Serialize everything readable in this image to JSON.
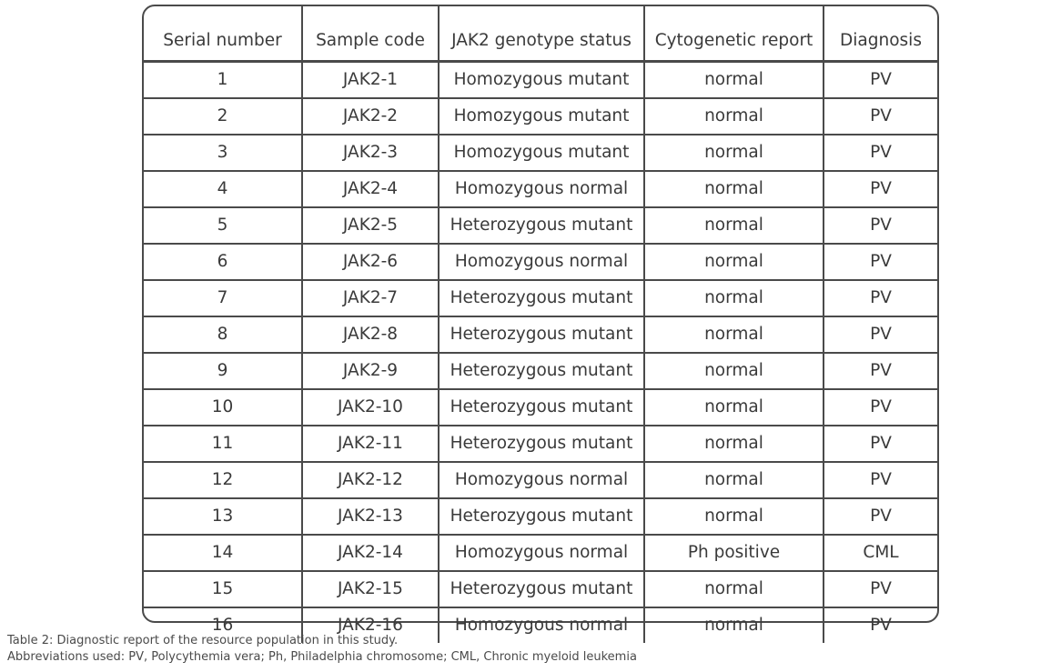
{
  "table": {
    "headers": [
      "Serial number",
      "Sample code",
      "JAK2 genotype status",
      "Cytogenetic report",
      "Diagnosis"
    ],
    "rows": [
      [
        "1",
        "JAK2-1",
        "Homozygous mutant",
        "normal",
        "PV"
      ],
      [
        "2",
        "JAK2-2",
        "Homozygous mutant",
        "normal",
        "PV"
      ],
      [
        "3",
        "JAK2-3",
        "Homozygous mutant",
        "normal",
        "PV"
      ],
      [
        "4",
        "JAK2-4",
        "Homozygous normal",
        "normal",
        "PV"
      ],
      [
        "5",
        "JAK2-5",
        "Heterozygous mutant",
        "normal",
        "PV"
      ],
      [
        "6",
        "JAK2-6",
        "Homozygous normal",
        "normal",
        "PV"
      ],
      [
        "7",
        "JAK2-7",
        "Heterozygous mutant",
        "normal",
        "PV"
      ],
      [
        "8",
        "JAK2-8",
        "Heterozygous mutant",
        "normal",
        "PV"
      ],
      [
        "9",
        "JAK2-9",
        "Heterozygous mutant",
        "normal",
        "PV"
      ],
      [
        "10",
        "JAK2-10",
        "Heterozygous mutant",
        "normal",
        "PV"
      ],
      [
        "11",
        "JAK2-11",
        "Heterozygous mutant",
        "normal",
        "PV"
      ],
      [
        "12",
        "JAK2-12",
        "Homozygous normal",
        "normal",
        "PV"
      ],
      [
        "13",
        "JAK2-13",
        "Heterozygous mutant",
        "normal",
        "PV"
      ],
      [
        "14",
        "JAK2-14",
        "Homozygous normal",
        "Ph positive",
        "CML"
      ],
      [
        "15",
        "JAK2-15",
        "Heterozygous mutant",
        "normal",
        "PV"
      ],
      [
        "16",
        "JAK2-16",
        "Homozygous normal",
        "normal",
        "PV"
      ]
    ]
  },
  "caption": {
    "line1": "Table 2: Diagnostic report of the resource population in this study.",
    "line2": "Abbreviations used: PV, Polycythemia vera; Ph, Philadelphia chromosome; CML, Chronic myeloid leukemia"
  }
}
